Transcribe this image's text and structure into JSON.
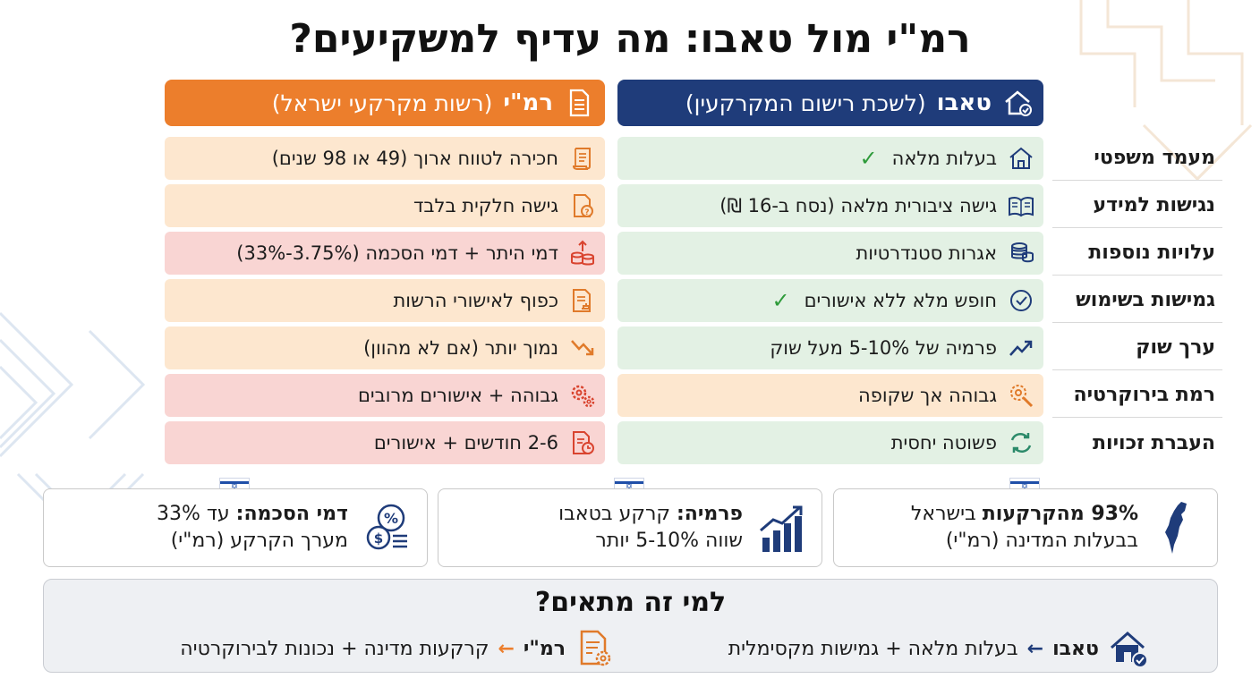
{
  "title": "רמ\"י מול טאבו: מה עדיף למשקיעים?",
  "columns": {
    "tabu": {
      "name": "טאבו",
      "subtitle": "(לשכת רישום המקרקעין)",
      "icon": "house-check-icon"
    },
    "rmi": {
      "name": "רמ\"י",
      "subtitle": "(רשות מקרקעי ישראל)",
      "icon": "document-icon"
    }
  },
  "rows": [
    {
      "label": "מעמד משפטי",
      "tabu": {
        "text": "בעלות מלאה",
        "check": "✓",
        "icon": "house-icon",
        "tone": "green"
      },
      "rmi": {
        "text": "חכירה לטווח ארוך (49 או 98 שנים)",
        "icon": "scroll-icon",
        "tone": "peach"
      }
    },
    {
      "label": "נגישות למידע",
      "tabu": {
        "text": "גישה ציבורית מלאה (נסח ב-16 ₪)",
        "check": "",
        "icon": "book-icon",
        "tone": "green"
      },
      "rmi": {
        "text": "גישה חלקית בלבד",
        "icon": "document-question-icon",
        "tone": "peach"
      }
    },
    {
      "label": "עלויות נוספות",
      "tabu": {
        "text": "אגרות סטנדרטיות",
        "check": "",
        "icon": "coins-icon",
        "tone": "green"
      },
      "rmi": {
        "text": "דמי היתר + דמי הסכמה (3.75%-33%)",
        "icon": "coins-arrow-icon",
        "tone": "pink"
      }
    },
    {
      "label": "גמישות בשימוש",
      "tabu": {
        "text": "חופש מלא ללא אישורים",
        "check": "✓",
        "icon": "check-circle-icon",
        "tone": "green"
      },
      "rmi": {
        "text": "כפוף לאישורי הרשות",
        "icon": "document-stamp-icon",
        "tone": "peach"
      }
    },
    {
      "label": "ערך שוק",
      "tabu": {
        "text": "פרמיה של 5-10% מעל שוק",
        "check": "",
        "icon": "trend-up-icon",
        "tone": "green"
      },
      "rmi": {
        "text": "נמוך יותר (אם לא מהוון)",
        "icon": "trend-down-icon",
        "tone": "peach"
      }
    },
    {
      "label": "רמת בירוקרטיה",
      "tabu": {
        "text": "גבוהה אך שקופה",
        "check": "",
        "icon": "gear-search-icon",
        "tone": "peach"
      },
      "rmi": {
        "text": "גבוהה + אישורים מרובים",
        "icon": "gears-icon",
        "tone": "pink"
      }
    },
    {
      "label": "העברת זכויות",
      "tabu": {
        "text": "פשוטה יחסית",
        "check": "",
        "icon": "refresh-icon",
        "tone": "green"
      },
      "rmi": {
        "text": "2-6 חודשים + אישורים",
        "icon": "document-clock-icon",
        "tone": "pink"
      }
    }
  ],
  "stats": [
    {
      "bold": "93% מהקרקעות",
      "rest": " בישראל",
      "line2": "בבעלות המדינה (רמ\"י)",
      "icon": "israel-map-icon"
    },
    {
      "bold": "פרמיה:",
      "rest": " קרקע בטאבו",
      "line2": "שווה 5-10% יותר",
      "icon": "bar-chart-up-icon"
    },
    {
      "bold": "דמי הסכמה:",
      "rest": " עד 33%",
      "line2": "מערך הקרקע (רמ\"י)",
      "icon": "money-percent-icon"
    }
  ],
  "flag_icon": "israel-flag-icon",
  "who": {
    "title": "למי זה מתאים?",
    "tabu": {
      "name": "טאבו",
      "arrow": "←",
      "text": "בעלות מלאה + גמישות מקסימלית",
      "icon": "house-check-icon"
    },
    "rmi": {
      "name": "רמ\"י",
      "arrow": "←",
      "text": "קרקעות מדינה + נכונות לבירוקרטיה",
      "icon": "document-gear-icon"
    }
  },
  "colors": {
    "navy": "#1f3c7a",
    "orange": "#ec7e2c",
    "green": "#e3f1e4",
    "peach": "#fde7cf",
    "pink": "#f9d5d3",
    "check": "#2e9b3a"
  }
}
